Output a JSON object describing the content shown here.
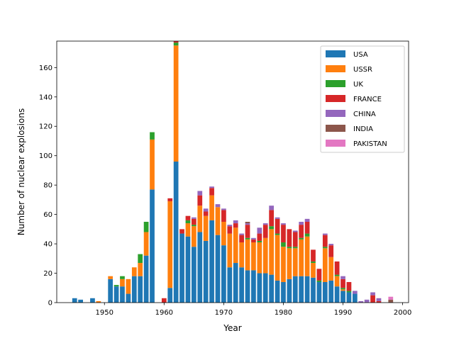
{
  "chart_data": {
    "type": "bar",
    "stacked": true,
    "title": "",
    "xlabel": "Year",
    "ylabel": "Number of nuclear explosions",
    "xlim": [
      1942,
      2001
    ],
    "ylim": [
      0,
      178
    ],
    "xticks": [
      1950,
      1960,
      1970,
      1980,
      1990,
      2000
    ],
    "yticks": [
      0,
      20,
      40,
      60,
      80,
      100,
      120,
      140,
      160
    ],
    "legend_position": "top-right",
    "grid": false,
    "years": [
      1945,
      1946,
      1948,
      1949,
      1951,
      1952,
      1953,
      1954,
      1955,
      1956,
      1957,
      1958,
      1960,
      1961,
      1962,
      1963,
      1964,
      1965,
      1966,
      1967,
      1968,
      1969,
      1970,
      1971,
      1972,
      1973,
      1974,
      1975,
      1976,
      1977,
      1978,
      1979,
      1980,
      1981,
      1982,
      1983,
      1984,
      1985,
      1986,
      1987,
      1988,
      1989,
      1990,
      1991,
      1992,
      1993,
      1994,
      1995,
      1996,
      1998
    ],
    "series": [
      {
        "name": "USA",
        "color": "#1f77b4",
        "values": [
          3,
          2,
          3,
          0,
          16,
          11,
          11,
          6,
          18,
          18,
          32,
          77,
          0,
          10,
          96,
          47,
          45,
          38,
          48,
          42,
          56,
          46,
          39,
          24,
          27,
          24,
          22,
          22,
          20,
          20,
          19,
          15,
          14,
          16,
          18,
          18,
          18,
          17,
          14,
          14,
          15,
          11,
          8,
          7,
          6,
          0,
          0,
          0,
          0,
          0
        ]
      },
      {
        "name": "USSR",
        "color": "#ff7f0e",
        "values": [
          0,
          0,
          0,
          1,
          2,
          0,
          5,
          10,
          6,
          9,
          16,
          34,
          0,
          59,
          79,
          0,
          9,
          14,
          18,
          17,
          17,
          19,
          16,
          23,
          24,
          17,
          21,
          19,
          21,
          24,
          31,
          31,
          24,
          21,
          19,
          25,
          27,
          10,
          0,
          23,
          16,
          7,
          1,
          0,
          0,
          0,
          0,
          0,
          0,
          0
        ]
      },
      {
        "name": "UK",
        "color": "#2ca02c",
        "values": [
          0,
          0,
          0,
          0,
          0,
          1,
          2,
          0,
          0,
          6,
          7,
          5,
          0,
          0,
          2,
          0,
          2,
          1,
          0,
          0,
          0,
          0,
          0,
          0,
          0,
          0,
          1,
          0,
          1,
          0,
          2,
          1,
          3,
          1,
          1,
          1,
          2,
          1,
          1,
          1,
          0,
          1,
          1,
          1,
          0,
          0,
          0,
          0,
          0,
          0
        ]
      },
      {
        "name": "FRANCE",
        "color": "#d62728",
        "values": [
          0,
          0,
          0,
          0,
          0,
          0,
          0,
          0,
          0,
          0,
          0,
          0,
          3,
          2,
          1,
          3,
          3,
          4,
          7,
          3,
          5,
          0,
          8,
          5,
          3,
          5,
          9,
          2,
          5,
          9,
          11,
          10,
          12,
          12,
          10,
          9,
          8,
          8,
          8,
          8,
          8,
          9,
          6,
          6,
          0,
          0,
          0,
          5,
          1,
          0
        ]
      },
      {
        "name": "CHINA",
        "color": "#9467bd",
        "values": [
          0,
          0,
          0,
          0,
          0,
          0,
          0,
          0,
          0,
          0,
          0,
          0,
          0,
          0,
          0,
          0,
          0,
          1,
          3,
          2,
          1,
          2,
          1,
          1,
          2,
          1,
          1,
          1,
          4,
          1,
          3,
          1,
          1,
          0,
          1,
          2,
          2,
          0,
          0,
          1,
          1,
          0,
          2,
          0,
          2,
          1,
          2,
          2,
          2,
          0
        ]
      },
      {
        "name": "INDIA",
        "color": "#8c564b",
        "values": [
          0,
          0,
          0,
          0,
          0,
          0,
          0,
          0,
          0,
          0,
          0,
          0,
          0,
          0,
          0,
          0,
          0,
          0,
          0,
          0,
          0,
          0,
          0,
          0,
          0,
          0,
          1,
          0,
          0,
          0,
          0,
          0,
          0,
          0,
          0,
          0,
          0,
          0,
          0,
          0,
          0,
          0,
          0,
          0,
          0,
          0,
          0,
          0,
          0,
          2
        ]
      },
      {
        "name": "PAKISTAN",
        "color": "#e377c2",
        "values": [
          0,
          0,
          0,
          0,
          0,
          0,
          0,
          0,
          0,
          0,
          0,
          0,
          0,
          0,
          0,
          0,
          0,
          0,
          0,
          0,
          0,
          0,
          0,
          0,
          0,
          0,
          0,
          0,
          0,
          0,
          0,
          0,
          0,
          0,
          0,
          0,
          0,
          0,
          0,
          0,
          0,
          0,
          0,
          0,
          0,
          0,
          0,
          0,
          0,
          2
        ]
      }
    ]
  }
}
